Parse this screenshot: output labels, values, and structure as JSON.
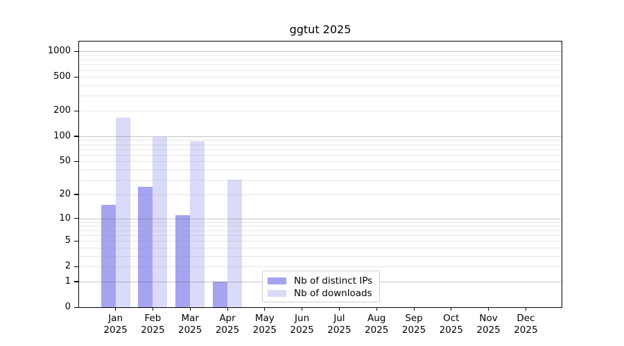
{
  "chart_data": {
    "type": "bar",
    "title": "ggtut 2025",
    "categories": [
      "Jan",
      "Feb",
      "Mar",
      "Apr",
      "May",
      "Jun",
      "Jul",
      "Aug",
      "Sep",
      "Oct",
      "Nov",
      "Dec"
    ],
    "xtick_year": "2025",
    "series": [
      {
        "key": "distinct-ips",
        "name": "Nb of distinct IPs",
        "color": "#a4a4f0",
        "values": [
          15,
          25,
          11,
          1,
          0,
          0,
          0,
          0,
          0,
          0,
          0,
          0
        ]
      },
      {
        "key": "downloads",
        "name": "Nb of downloads",
        "color": "#dadaf9",
        "values": [
          165,
          98,
          88,
          30,
          0,
          0,
          0,
          0,
          0,
          0,
          0,
          0
        ]
      }
    ],
    "yscale": "log1p",
    "yticks": [
      0,
      1,
      2,
      5,
      10,
      20,
      50,
      100,
      200,
      500,
      1000
    ],
    "major_gridlines": [
      1,
      10,
      100,
      1000
    ],
    "ylim": [
      0,
      1300
    ],
    "grid": true,
    "legend_position": "lower-center",
    "axis_color": "#000000",
    "background_color": "#ffffff"
  }
}
